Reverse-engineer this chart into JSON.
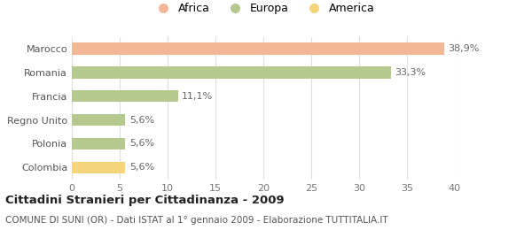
{
  "categories": [
    "Marocco",
    "Romania",
    "Francia",
    "Regno Unito",
    "Polonia",
    "Colombia"
  ],
  "values": [
    38.9,
    33.3,
    11.1,
    5.6,
    5.6,
    5.6
  ],
  "labels": [
    "38,9%",
    "33,3%",
    "11,1%",
    "5,6%",
    "5,6%",
    "5,6%"
  ],
  "colors": [
    "#f2b896",
    "#b5c98e",
    "#b5c98e",
    "#b5c98e",
    "#b5c98e",
    "#f5d47a"
  ],
  "legend_items": [
    {
      "label": "Africa",
      "color": "#f2b896"
    },
    {
      "label": "Europa",
      "color": "#b5c98e"
    },
    {
      "label": "America",
      "color": "#f5d47a"
    }
  ],
  "xlim": [
    0,
    40
  ],
  "xticks": [
    0,
    5,
    10,
    15,
    20,
    25,
    30,
    35,
    40
  ],
  "title": "Cittadini Stranieri per Cittadinanza - 2009",
  "subtitle": "COMUNE DI SUNI (OR) - Dati ISTAT al 1° gennaio 2009 - Elaborazione TUTTITALIA.IT",
  "background_color": "#ffffff",
  "grid_color": "#e0e0e0",
  "bar_height": 0.5,
  "label_fontsize": 8,
  "ytick_fontsize": 8,
  "xtick_fontsize": 8,
  "title_fontsize": 9.5,
  "subtitle_fontsize": 7.5
}
